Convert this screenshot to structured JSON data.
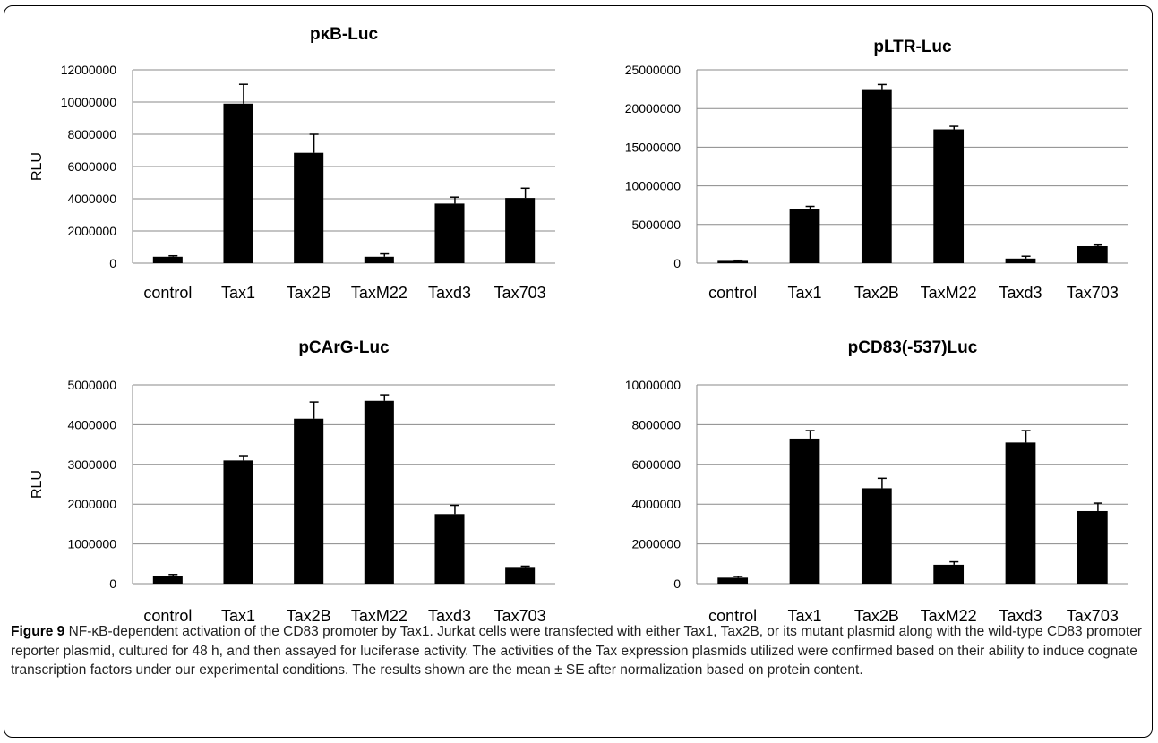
{
  "chart_data": [
    {
      "type": "bar",
      "title": "pκB-Luc",
      "ylabel": "RLU",
      "categories": [
        "control",
        "Tax1",
        "Tax2B",
        "TaxM22",
        "Taxd3",
        "Tax703"
      ],
      "values": [
        400000,
        9900000,
        6850000,
        400000,
        3700000,
        4050000
      ],
      "errors": [
        60000,
        1200000,
        1150000,
        180000,
        400000,
        600000
      ],
      "ylim": [
        0,
        12000000
      ],
      "yticks": [
        "0",
        "2000000",
        "4000000",
        "6000000",
        "8000000",
        "10000000",
        "12000000"
      ],
      "grid": true,
      "color": "#000000"
    },
    {
      "type": "bar",
      "title": "pLTR-Luc",
      "ylabel": "",
      "categories": [
        "control",
        "Tax1",
        "Tax2B",
        "TaxM22",
        "Taxd3",
        "Tax703"
      ],
      "values": [
        300000,
        7000000,
        22500000,
        17300000,
        600000,
        2200000
      ],
      "errors": [
        80000,
        350000,
        600000,
        400000,
        300000,
        150000
      ],
      "ylim": [
        0,
        25000000
      ],
      "yticks": [
        "0",
        "5000000",
        "10000000",
        "15000000",
        "20000000",
        "25000000"
      ],
      "grid": true,
      "color": "#000000"
    },
    {
      "type": "bar",
      "title": "pCArG-Luc",
      "ylabel": "RLU",
      "categories": [
        "control",
        "Tax1",
        "Tax2B",
        "TaxM22",
        "Taxd3",
        "Tax703"
      ],
      "values": [
        200000,
        3100000,
        4150000,
        4600000,
        1750000,
        420000
      ],
      "errors": [
        30000,
        120000,
        420000,
        150000,
        220000,
        20000
      ],
      "ylim": [
        0,
        5000000
      ],
      "yticks": [
        "0",
        "1000000",
        "2000000",
        "3000000",
        "4000000",
        "5000000"
      ],
      "grid": true,
      "color": "#000000"
    },
    {
      "type": "bar",
      "title": "pCD83(-537)Luc",
      "ylabel": "",
      "categories": [
        "control",
        "Tax1",
        "Tax2B",
        "TaxM22",
        "Taxd3",
        "Tax703"
      ],
      "values": [
        300000,
        7300000,
        4800000,
        950000,
        7100000,
        3650000
      ],
      "errors": [
        60000,
        400000,
        500000,
        150000,
        600000,
        400000
      ],
      "ylim": [
        0,
        10000000
      ],
      "yticks": [
        "0",
        "2000000",
        "4000000",
        "6000000",
        "8000000",
        "10000000"
      ],
      "grid": true,
      "color": "#000000"
    }
  ],
  "caption": {
    "label": "Figure 9",
    "text": "NF-κB-dependent activation of the CD83 promoter by Tax1. Jurkat cells were transfected with either Tax1, Tax2B, or its mutant plasmid along with the wild-type CD83 promoter reporter plasmid, cultured for 48 h, and then assayed for luciferase activity. The activities of the Tax expression plasmids utilized were confirmed based on their ability to induce cognate transcription factors under our experimental conditions. The results shown are the mean ± SE after normalization based on protein content."
  }
}
